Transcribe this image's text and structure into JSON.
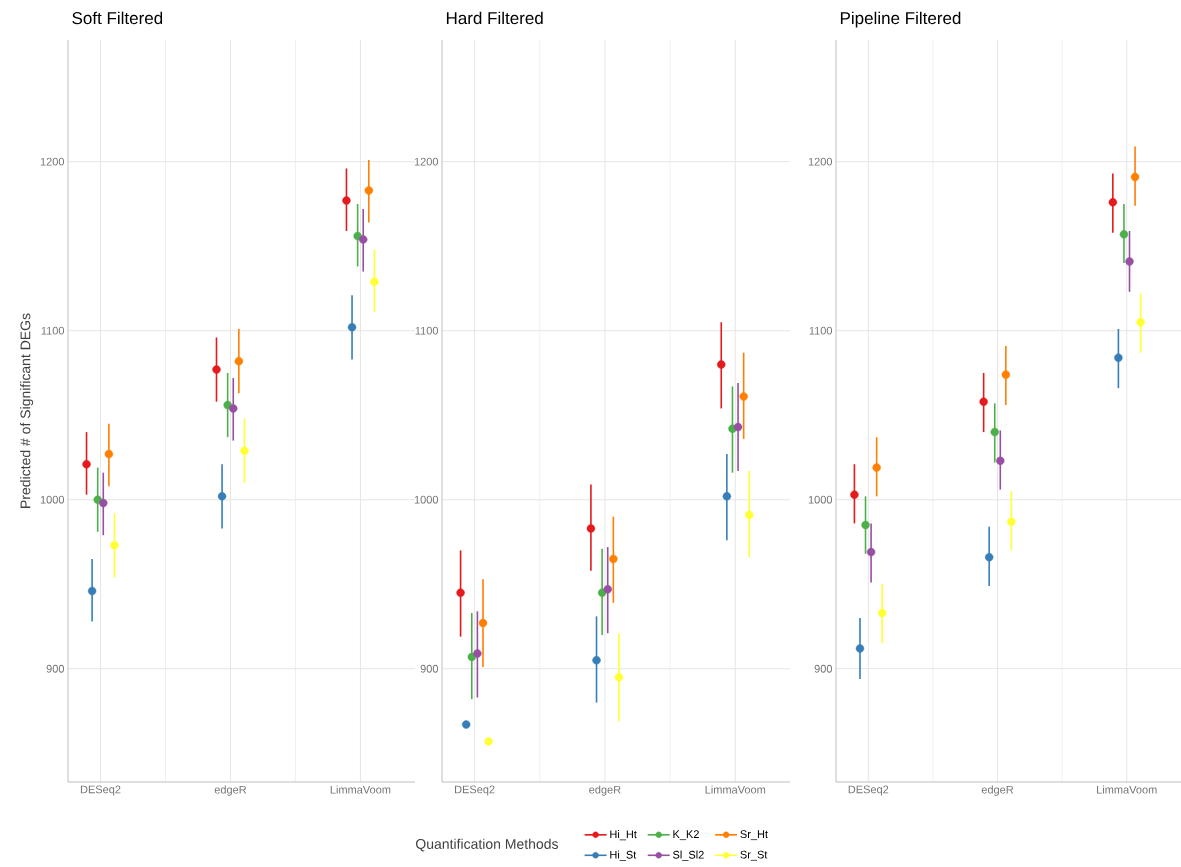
{
  "chart_data": [
    {
      "type": "scatter",
      "title": "Soft Filtered",
      "ylabel": "Predicted # of Significant DEGs",
      "categories": [
        "DESeq2",
        "edgeR",
        "LimmaVoom"
      ],
      "ylim": [
        833,
        1272
      ],
      "yticks": [
        900,
        1000,
        1100,
        1200
      ],
      "grid": true,
      "marker": "circle",
      "series": [
        {
          "color": "#e41a1c",
          "values": [
            1021,
            1077,
            1177
          ],
          "errors": [
            [
              1003,
              1040
            ],
            [
              1058,
              1096
            ],
            [
              1159,
              1196
            ]
          ]
        },
        {
          "color": "#377eb8",
          "values": [
            946,
            1002,
            1102
          ],
          "errors": [
            [
              928,
              965
            ],
            [
              983,
              1021
            ],
            [
              1083,
              1121
            ]
          ]
        },
        {
          "color": "#4daf4a",
          "values": [
            1000,
            1056,
            1156
          ],
          "errors": [
            [
              981,
              1019
            ],
            [
              1037,
              1075
            ],
            [
              1138,
              1175
            ]
          ]
        },
        {
          "color": "#984ea3",
          "values": [
            998,
            1054,
            1154
          ],
          "errors": [
            [
              979,
              1016
            ],
            [
              1035,
              1072
            ],
            [
              1135,
              1172
            ]
          ]
        },
        {
          "color": "#ff7f00",
          "values": [
            1027,
            1082,
            1183
          ],
          "errors": [
            [
              1008,
              1045
            ],
            [
              1063,
              1101
            ],
            [
              1164,
              1201
            ]
          ]
        },
        {
          "color": "#ffff33",
          "values": [
            973,
            1029,
            1129
          ],
          "errors": [
            [
              954,
              992
            ],
            [
              1010,
              1048
            ],
            [
              1111,
              1148
            ]
          ]
        }
      ]
    },
    {
      "type": "scatter",
      "title": "Hard Filtered",
      "categories": [
        "DESeq2",
        "edgeR",
        "LimmaVoom"
      ],
      "ylim": [
        833,
        1272
      ],
      "yticks": [
        900,
        1000,
        1100,
        1200
      ],
      "grid": true,
      "marker": "circle",
      "legend": "bottom",
      "legend_title": "Quantification Methods",
      "series": [
        {
          "name": "Hi_Ht",
          "color": "#e41a1c",
          "values": [
            945,
            983,
            1080
          ],
          "errors": [
            [
              919,
              970
            ],
            [
              958,
              1009
            ],
            [
              1054,
              1105
            ]
          ]
        },
        {
          "name": "Hi_St",
          "color": "#377eb8",
          "values": [
            867,
            905,
            1002
          ],
          "errors": [
            null,
            [
              880,
              931
            ],
            [
              976,
              1027
            ]
          ]
        },
        {
          "name": "K_K2",
          "color": "#4daf4a",
          "values": [
            907,
            945,
            1042
          ],
          "errors": [
            [
              882,
              933
            ],
            [
              920,
              971
            ],
            [
              1016,
              1067
            ]
          ]
        },
        {
          "name": "Sl_Sl2",
          "color": "#984ea3",
          "values": [
            909,
            947,
            1043
          ],
          "errors": [
            [
              883,
              934
            ],
            [
              921,
              972
            ],
            [
              1017,
              1069
            ]
          ]
        },
        {
          "name": "Sr_Ht",
          "color": "#ff7f00",
          "values": [
            927,
            965,
            1061
          ],
          "errors": [
            [
              901,
              953
            ],
            [
              939,
              990
            ],
            [
              1036,
              1087
            ]
          ]
        },
        {
          "name": "Sr_St",
          "color": "#ffff33",
          "values": [
            857,
            895,
            991
          ],
          "errors": [
            null,
            [
              869,
              921
            ],
            [
              966,
              1017
            ]
          ]
        }
      ]
    },
    {
      "type": "scatter",
      "title": "Pipeline Filtered",
      "categories": [
        "DESeq2",
        "edgeR",
        "LimmaVoom"
      ],
      "ylim": [
        833,
        1272
      ],
      "yticks": [
        900,
        1000,
        1100,
        1200
      ],
      "grid": true,
      "marker": "circle",
      "series": [
        {
          "color": "#e41a1c",
          "values": [
            1003,
            1058,
            1176
          ],
          "errors": [
            [
              986,
              1021
            ],
            [
              1040,
              1075
            ],
            [
              1158,
              1193
            ]
          ]
        },
        {
          "color": "#377eb8",
          "values": [
            912,
            966,
            1084
          ],
          "errors": [
            [
              894,
              930
            ],
            [
              949,
              984
            ],
            [
              1066,
              1101
            ]
          ]
        },
        {
          "color": "#4daf4a",
          "values": [
            985,
            1040,
            1157
          ],
          "errors": [
            [
              968,
              1002
            ],
            [
              1022,
              1057
            ],
            [
              1140,
              1175
            ]
          ]
        },
        {
          "color": "#984ea3",
          "values": [
            969,
            1023,
            1141
          ],
          "errors": [
            [
              951,
              986
            ],
            [
              1006,
              1041
            ],
            [
              1123,
              1159
            ]
          ]
        },
        {
          "color": "#ff7f00",
          "values": [
            1019,
            1074,
            1191
          ],
          "errors": [
            [
              1002,
              1037
            ],
            [
              1056,
              1091
            ],
            [
              1174,
              1209
            ]
          ]
        },
        {
          "color": "#ffff33",
          "values": [
            933,
            987,
            1105
          ],
          "errors": [
            [
              915,
              950
            ],
            [
              970,
              1005
            ],
            [
              1087,
              1122
            ]
          ]
        }
      ]
    }
  ]
}
